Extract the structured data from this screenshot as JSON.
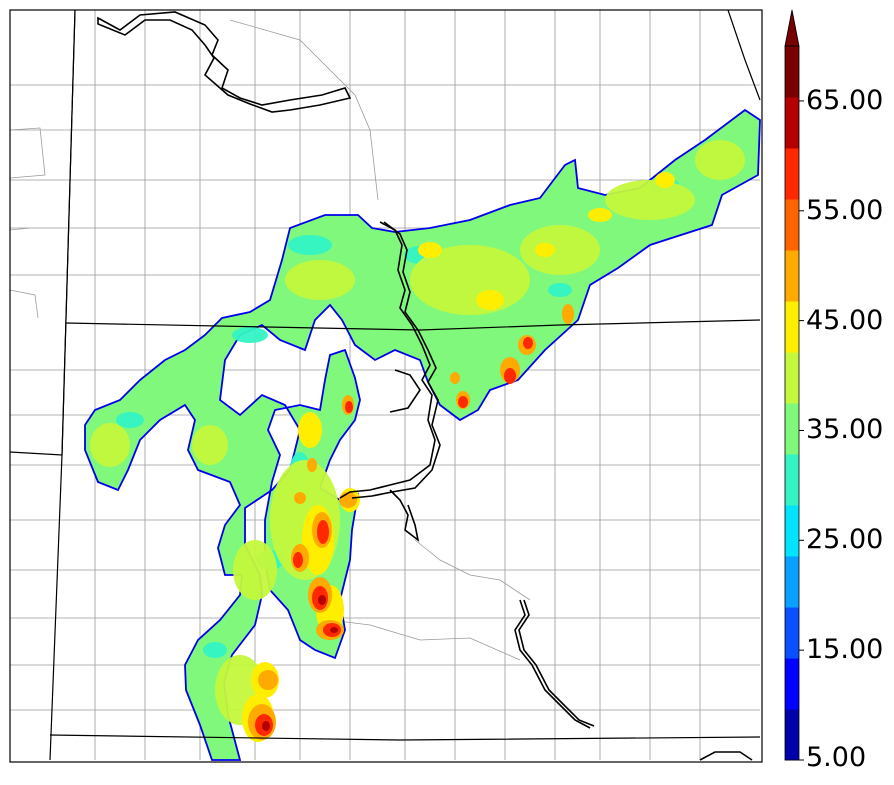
{
  "colorbar": {
    "tick_labels": [
      "5.00",
      "15.00",
      "25.00",
      "35.00",
      "45.00",
      "55.00",
      "65.00"
    ],
    "min": 5,
    "max": 70,
    "step": 5,
    "extend": "max",
    "colors": [
      "#0000aa",
      "#0000ff",
      "#0a50ff",
      "#0aa0ff",
      "#00e4ff",
      "#34f4c4",
      "#7ff87c",
      "#c4f83c",
      "#ffee00",
      "#ffaa00",
      "#ff6400",
      "#ff2800",
      "#b40000",
      "#780000"
    ]
  },
  "map": {
    "field_colors": {
      "edge": "#0000ee",
      "base": "#7ff87c",
      "light": "#c4f83c",
      "cyan": "#34f4c4",
      "yellow": "#ffee00",
      "orange": "#ffaa00",
      "red": "#ff2800",
      "darkred": "#b40000"
    },
    "state_border_color": "#000000",
    "county_line_color": "#9a9a9a",
    "river_color": "#000000"
  }
}
